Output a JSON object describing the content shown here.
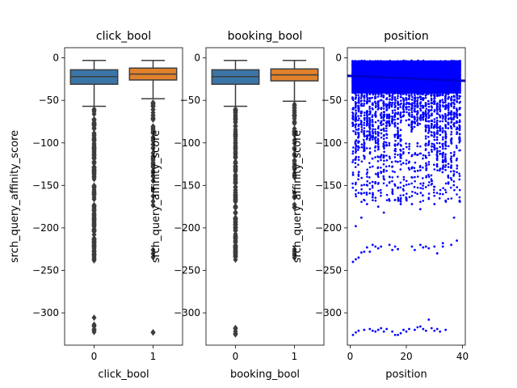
{
  "chart_data": [
    {
      "type": "box",
      "title": "click_bool",
      "xlabel": "click_bool",
      "ylabel": "srch_query_affinity_score",
      "categories": [
        "0",
        "1"
      ],
      "ylim": [
        -338,
        12
      ],
      "yticks": [
        0,
        -50,
        -100,
        -150,
        -200,
        -250,
        -300
      ],
      "ytick_labels": [
        "0",
        "−50",
        "−100",
        "−150",
        "−200",
        "−250",
        "−300"
      ],
      "boxes": [
        {
          "category": "0",
          "color": "#3a75a8",
          "q1": -31,
          "median": -22,
          "q3": -14,
          "whisker_low": -57,
          "whisker_high": -3
        },
        {
          "category": "1",
          "color": "#e1812c",
          "q1": -26,
          "median": -19,
          "q3": -12,
          "whisker_low": -48,
          "whisker_high": -3
        }
      ]
    },
    {
      "type": "box",
      "title": "booking_bool",
      "xlabel": "booking_bool",
      "ylabel": "srch_query_affinity_score",
      "categories": [
        "0",
        "1"
      ],
      "ylim": [
        -338,
        12
      ],
      "yticks": [
        0,
        -50,
        -100,
        -150,
        -200,
        -250,
        -300
      ],
      "ytick_labels": [
        "0",
        "−50",
        "−100",
        "−150",
        "−200",
        "−250",
        "−300"
      ],
      "boxes": [
        {
          "category": "0",
          "color": "#3a75a8",
          "q1": -31,
          "median": -22,
          "q3": -14,
          "whisker_low": -57,
          "whisker_high": -3
        },
        {
          "category": "1",
          "color": "#e1812c",
          "q1": -27,
          "median": -20,
          "q3": -13,
          "whisker_low": -51,
          "whisker_high": -3
        }
      ]
    },
    {
      "type": "scatter",
      "title": "position",
      "xlabel": "position",
      "ylabel": "srch_query_affinity_score",
      "xlim": [
        -1,
        41
      ],
      "ylim": [
        -338,
        12
      ],
      "xticks": [
        0,
        20,
        40
      ],
      "xtick_labels": [
        "0",
        "20",
        "40"
      ],
      "yticks": [
        0,
        -50,
        -100,
        -150,
        -200,
        -250,
        -300
      ],
      "ytick_labels": [
        "0",
        "−50",
        "−100",
        "−150",
        "−200",
        "−250",
        "−300"
      ],
      "color": "#0000ff",
      "trend_line": {
        "x": [
          -1,
          41
        ],
        "y": [
          -21,
          -27
        ]
      },
      "points": [
        [
          1,
          -240
        ],
        [
          2,
          -237
        ],
        [
          3,
          -235
        ],
        [
          4,
          -229
        ],
        [
          5,
          -228
        ],
        [
          6,
          -223
        ],
        [
          7,
          -228
        ],
        [
          8,
          -220
        ],
        [
          9,
          -222
        ],
        [
          10,
          -224
        ],
        [
          11,
          -222
        ],
        [
          14,
          -220
        ],
        [
          15,
          -226
        ],
        [
          16,
          -222
        ],
        [
          17,
          -225
        ],
        [
          22,
          -222
        ],
        [
          23,
          -226
        ],
        [
          25,
          -220
        ],
        [
          26,
          -223
        ],
        [
          27,
          -222
        ],
        [
          28,
          -224
        ],
        [
          30,
          -222
        ],
        [
          31,
          -230
        ],
        [
          33,
          -222
        ],
        [
          33,
          -218
        ],
        [
          36,
          -220
        ],
        [
          38,
          -215
        ],
        [
          2,
          -198
        ],
        [
          4,
          -188
        ],
        [
          6,
          -172
        ],
        [
          8,
          -164
        ],
        [
          10,
          -175
        ],
        [
          12,
          -182
        ],
        [
          14,
          -168
        ],
        [
          18,
          -172
        ],
        [
          20,
          -166
        ],
        [
          22,
          -172
        ],
        [
          25,
          -178
        ],
        [
          28,
          -166
        ],
        [
          30,
          -172
        ],
        [
          32,
          -160
        ],
        [
          34,
          -168
        ],
        [
          37,
          -188
        ],
        [
          1,
          -326
        ],
        [
          2,
          -323
        ],
        [
          3,
          -321
        ],
        [
          5,
          -320
        ],
        [
          7,
          -319
        ],
        [
          8,
          -321
        ],
        [
          9,
          -322
        ],
        [
          10,
          -320
        ],
        [
          11,
          -318
        ],
        [
          12,
          -322
        ],
        [
          13,
          -319
        ],
        [
          15,
          -322
        ],
        [
          16,
          -326
        ],
        [
          17,
          -326
        ],
        [
          18,
          -324
        ],
        [
          19,
          -320
        ],
        [
          20,
          -322
        ],
        [
          21,
          -319
        ],
        [
          23,
          -320
        ],
        [
          24,
          -317
        ],
        [
          25,
          -316
        ],
        [
          26,
          -319
        ],
        [
          27,
          -321
        ],
        [
          28,
          -308
        ],
        [
          29,
          -318
        ],
        [
          30,
          -321
        ],
        [
          31,
          -319
        ],
        [
          32,
          -322
        ],
        [
          34,
          -320
        ]
      ]
    }
  ]
}
